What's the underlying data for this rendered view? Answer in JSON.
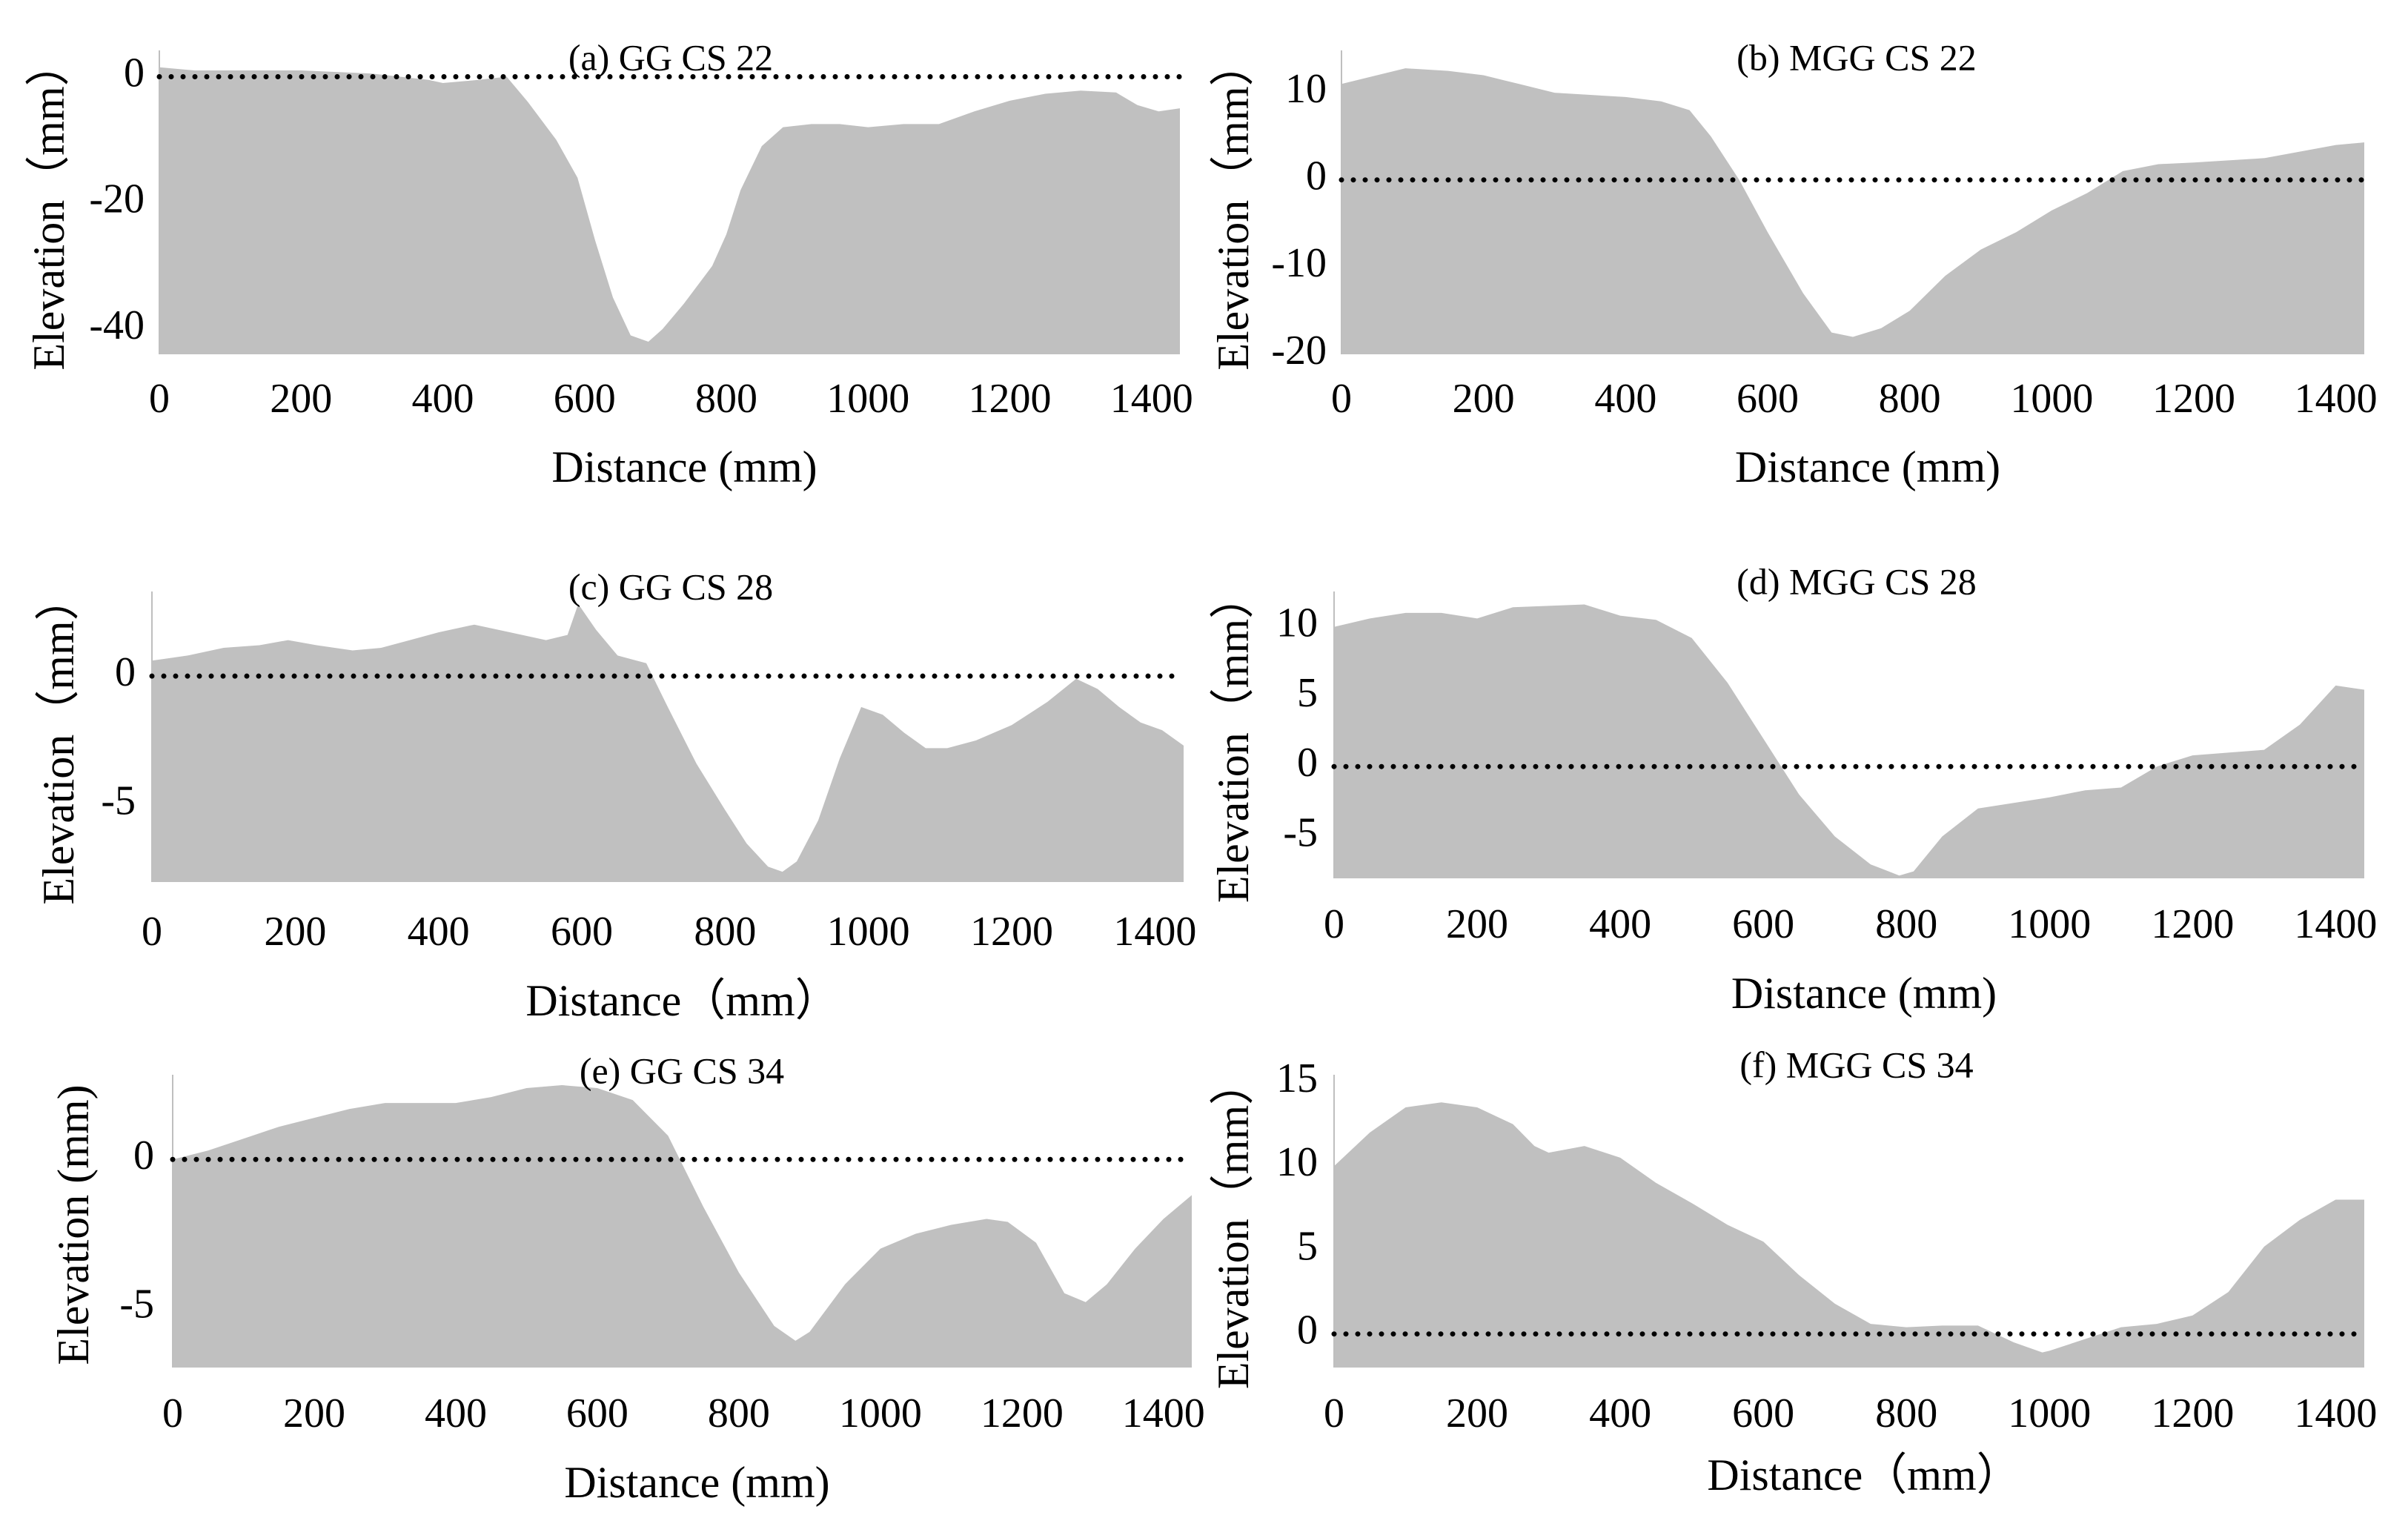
{
  "chart_data": [
    {
      "type": "area",
      "title": "(a) GG CS 22",
      "xlabel": "Distance (mm)",
      "ylabel": "Elevation（mm）",
      "xlim": [
        0,
        1440
      ],
      "ylim": [
        -44,
        3
      ],
      "xticks": [
        "0",
        "200",
        "400",
        "600",
        "800",
        "1000",
        "1200",
        "1400"
      ],
      "yticks": [
        {
          "value": 0,
          "label": "0"
        },
        {
          "value": -20,
          "label": "-20"
        },
        {
          "value": -40,
          "label": "-40"
        }
      ],
      "reference_line": 0,
      "fill": "#c0c0c0",
      "x": [
        0,
        50,
        100,
        200,
        300,
        380,
        400,
        450,
        490,
        520,
        560,
        590,
        615,
        640,
        665,
        690,
        710,
        740,
        780,
        800,
        820,
        850,
        880,
        920,
        960,
        1000,
        1050,
        1100,
        1150,
        1200,
        1250,
        1300,
        1350,
        1380,
        1410,
        1440
      ],
      "values": [
        1.5,
        1,
        1,
        1,
        0.5,
        -0.5,
        -1,
        -0.5,
        0,
        -4,
        -10,
        -16,
        -26,
        -35,
        -41,
        -42,
        -40,
        -36,
        -30,
        -25,
        -18,
        -11,
        -8,
        -7.5,
        -7.5,
        -8,
        -7.5,
        -7.5,
        -5.5,
        -3.8,
        -2.7,
        -2.2,
        -2.5,
        -4.5,
        -5.5,
        -5
      ]
    },
    {
      "type": "area",
      "title": "(b) MGG CS 22",
      "xlabel": "Distance (mm)",
      "ylabel": "Elevation（mm）",
      "xlim": [
        0,
        1440
      ],
      "ylim": [
        -20,
        14
      ],
      "xticks": [
        "0",
        "200",
        "400",
        "600",
        "800",
        "1000",
        "1200",
        "1400"
      ],
      "yticks": [
        {
          "value": 10,
          "label": "10"
        },
        {
          "value": 0,
          "label": "0"
        },
        {
          "value": -10,
          "label": "-10"
        },
        {
          "value": -20,
          "label": "-20"
        }
      ],
      "reference_line": 0,
      "fill": "#c0c0c0",
      "x": [
        0,
        50,
        90,
        150,
        200,
        250,
        300,
        400,
        450,
        490,
        520,
        560,
        600,
        650,
        690,
        720,
        760,
        800,
        850,
        900,
        950,
        1000,
        1050,
        1100,
        1150,
        1200,
        1300,
        1400,
        1440
      ],
      "values": [
        11,
        12,
        12.8,
        12.5,
        12,
        11,
        10,
        9.5,
        9,
        8,
        5,
        0,
        -6,
        -13,
        -17.5,
        -18,
        -17,
        -15,
        -11,
        -8,
        -6,
        -3.5,
        -1.5,
        1,
        1.8,
        2,
        2.5,
        4,
        4.3
      ]
    },
    {
      "type": "area",
      "title": "(c) GG CS 28",
      "xlabel": "Distance（mm）",
      "ylabel": "Elevation（mm）",
      "xlim": [
        0,
        1440
      ],
      "ylim": [
        -8,
        3
      ],
      "xticks": [
        "0",
        "200",
        "400",
        "600",
        "800",
        "1000",
        "1200",
        "1400"
      ],
      "yticks": [
        {
          "value": 0,
          "label": "0"
        },
        {
          "value": -5,
          "label": "-5"
        }
      ],
      "reference_line": 0,
      "fill": "#c0c0c0",
      "x": [
        0,
        50,
        100,
        150,
        190,
        230,
        280,
        320,
        360,
        400,
        450,
        500,
        550,
        580,
        595,
        620,
        650,
        690,
        720,
        760,
        800,
        830,
        860,
        880,
        900,
        930,
        960,
        990,
        1020,
        1050,
        1080,
        1110,
        1150,
        1200,
        1250,
        1290,
        1320,
        1350,
        1380,
        1410,
        1440
      ],
      "values": [
        0.6,
        0.8,
        1.1,
        1.2,
        1.4,
        1.2,
        1.0,
        1.1,
        1.4,
        1.7,
        2.0,
        1.7,
        1.4,
        1.6,
        2.8,
        1.8,
        0.8,
        0.5,
        -1.2,
        -3.4,
        -5.2,
        -6.5,
        -7.4,
        -7.6,
        -7.2,
        -5.6,
        -3.2,
        -1.2,
        -1.5,
        -2.2,
        -2.8,
        -2.8,
        -2.5,
        -1.9,
        -1.0,
        -0.1,
        -0.5,
        -1.2,
        -1.8,
        -2.1,
        -2.7
      ]
    },
    {
      "type": "area",
      "title": "(d) MGG CS 28",
      "xlabel": "Distance (mm)",
      "ylabel": "Elevation（mm）",
      "xlim": [
        0,
        1440
      ],
      "ylim": [
        -8,
        12
      ],
      "xticks": [
        "0",
        "200",
        "400",
        "600",
        "800",
        "1000",
        "1200",
        "1400"
      ],
      "yticks": [
        {
          "value": 10,
          "label": "10"
        },
        {
          "value": 5,
          "label": "5"
        },
        {
          "value": 0,
          "label": "0"
        },
        {
          "value": -5,
          "label": "-5"
        }
      ],
      "reference_line": 0,
      "fill": "#c0c0c0",
      "x": [
        0,
        50,
        100,
        150,
        200,
        250,
        300,
        350,
        400,
        450,
        500,
        550,
        600,
        650,
        700,
        750,
        790,
        810,
        850,
        900,
        1000,
        1050,
        1100,
        1150,
        1200,
        1250,
        1300,
        1350,
        1400,
        1440
      ],
      "values": [
        10,
        10.6,
        11,
        11,
        10.6,
        11.4,
        11.5,
        11.6,
        10.8,
        10.5,
        9.2,
        6,
        2,
        -2,
        -5,
        -7,
        -7.8,
        -7.5,
        -5,
        -3,
        -2.2,
        -1.7,
        -1.5,
        0,
        0.8,
        1,
        1.2,
        3,
        5.8,
        5.5
      ]
    },
    {
      "type": "area",
      "title": "(e) GG CS 34",
      "xlabel": "Distance (mm)",
      "ylabel": "Elevation (mm)",
      "xlim": [
        0,
        1440
      ],
      "ylim": [
        -7,
        2.6
      ],
      "xticks": [
        "0",
        "200",
        "400",
        "600",
        "800",
        "1000",
        "1200",
        "1400"
      ],
      "yticks": [
        {
          "value": 0,
          "label": "0"
        },
        {
          "value": -5,
          "label": "-5"
        }
      ],
      "reference_line": 0,
      "fill": "#c0c0c0",
      "x": [
        0,
        50,
        100,
        150,
        200,
        250,
        300,
        350,
        400,
        450,
        500,
        550,
        600,
        650,
        700,
        750,
        800,
        850,
        880,
        900,
        950,
        1000,
        1050,
        1100,
        1150,
        1180,
        1220,
        1260,
        1290,
        1320,
        1360,
        1400,
        1440
      ],
      "values": [
        0,
        0.3,
        0.7,
        1.1,
        1.4,
        1.7,
        1.9,
        1.9,
        1.9,
        2.1,
        2.4,
        2.5,
        2.4,
        2.0,
        0.8,
        -1.6,
        -3.8,
        -5.6,
        -6.1,
        -5.8,
        -4.2,
        -3,
        -2.5,
        -2.2,
        -2,
        -2.1,
        -2.8,
        -4.5,
        -4.8,
        -4.2,
        -3.0,
        -2,
        -1.2
      ]
    },
    {
      "type": "area",
      "title": "(f) MGG CS 34",
      "xlabel": "Distance（mm）",
      "ylabel": "Elevation（mm）",
      "xlim": [
        0,
        1440
      ],
      "ylim": [
        -2,
        15
      ],
      "xticks": [
        "0",
        "200",
        "400",
        "600",
        "800",
        "1000",
        "1200",
        "1400"
      ],
      "yticks": [
        {
          "value": 15,
          "label": "15"
        },
        {
          "value": 10,
          "label": "10"
        },
        {
          "value": 5,
          "label": "5"
        },
        {
          "value": 0,
          "label": "0"
        }
      ],
      "reference_line": 0,
      "fill": "#c0c0c0",
      "x": [
        0,
        50,
        100,
        150,
        200,
        250,
        280,
        300,
        350,
        400,
        450,
        500,
        550,
        600,
        650,
        700,
        750,
        800,
        850,
        900,
        950,
        990,
        1000,
        1050,
        1100,
        1150,
        1200,
        1250,
        1300,
        1350,
        1400,
        1440
      ],
      "values": [
        10,
        12,
        13.5,
        13.8,
        13.5,
        12.5,
        11.2,
        10.8,
        11.2,
        10.5,
        9,
        7.8,
        6.5,
        5.5,
        3.5,
        1.8,
        0.6,
        0.4,
        0.5,
        0.5,
        -0.5,
        -1.1,
        -1.0,
        -0.3,
        0.4,
        0.6,
        1.1,
        2.5,
        5.2,
        6.8,
        8.0,
        8.0
      ]
    }
  ]
}
